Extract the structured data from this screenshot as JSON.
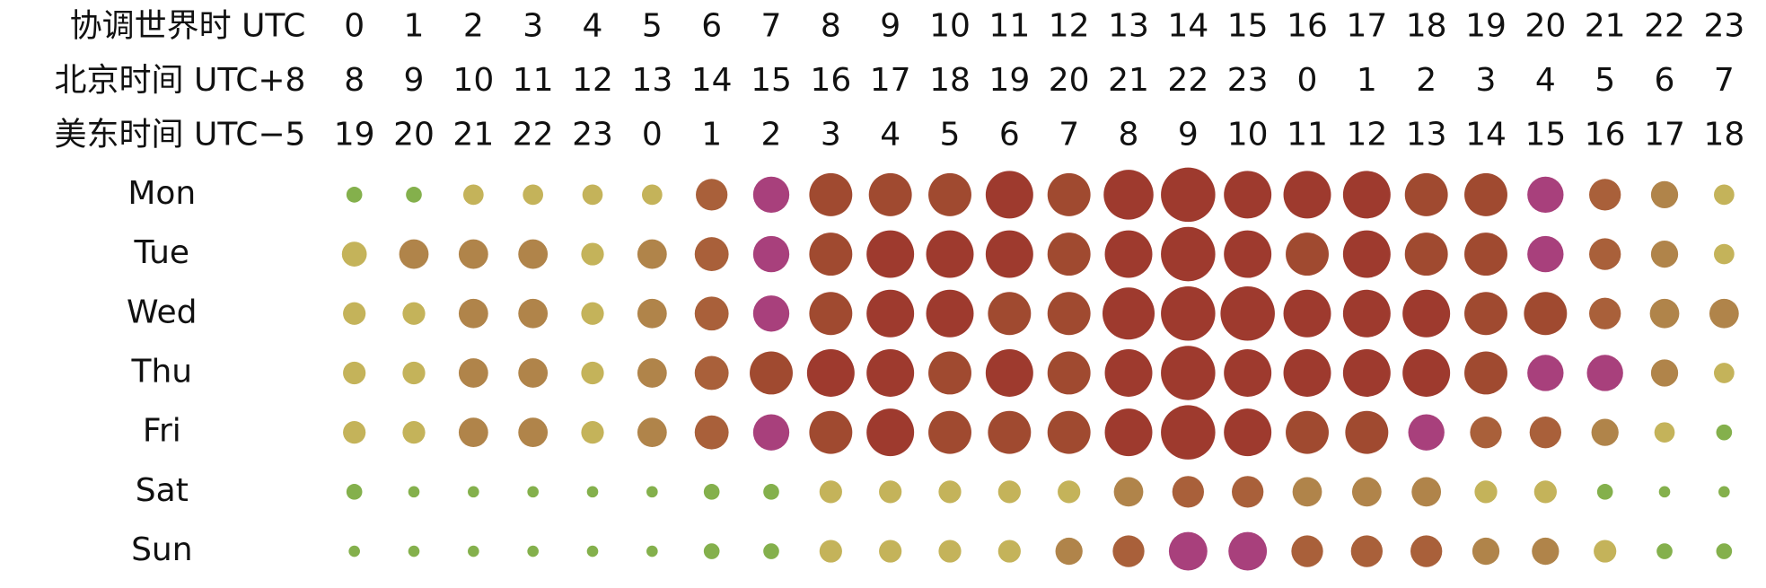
{
  "chart_data": {
    "type": "punchcard",
    "header_rows": [
      {
        "label": "协调世界时 UTC",
        "hours": [
          0,
          1,
          2,
          3,
          4,
          5,
          6,
          7,
          8,
          9,
          10,
          11,
          12,
          13,
          14,
          15,
          16,
          17,
          18,
          19,
          20,
          21,
          22,
          23
        ]
      },
      {
        "label": "北京时间 UTC+8",
        "hours": [
          8,
          9,
          10,
          11,
          12,
          13,
          14,
          15,
          16,
          17,
          18,
          19,
          20,
          21,
          22,
          23,
          0,
          1,
          2,
          3,
          4,
          5,
          6,
          7
        ]
      },
      {
        "label": "美东时间 UTC−5",
        "hours": [
          19,
          20,
          21,
          22,
          23,
          0,
          1,
          2,
          3,
          4,
          5,
          6,
          7,
          8,
          9,
          10,
          11,
          12,
          13,
          14,
          15,
          16,
          17,
          18
        ]
      }
    ],
    "series": [
      {
        "name": "Mon",
        "values": [
          14,
          14,
          18,
          18,
          18,
          18,
          28,
          32,
          38,
          38,
          38,
          42,
          38,
          44,
          48,
          42,
          42,
          42,
          38,
          38,
          32,
          28,
          24,
          18
        ],
        "colors": [
          "#84b04c",
          "#84b04c",
          "#c4b35a",
          "#c4b35a",
          "#c4b35a",
          "#c4b35a",
          "#a9603a",
          "#a8407c",
          "#a04a30",
          "#a04a30",
          "#a04a30",
          "#9e3a2e",
          "#a04a30",
          "#9e3a2e",
          "#9e3a2e",
          "#9e3a2e",
          "#9e3a2e",
          "#9e3a2e",
          "#a04a30",
          "#a04a30",
          "#a8407c",
          "#a9603a",
          "#b0844a",
          "#c4b35a"
        ]
      },
      {
        "name": "Tue",
        "values": [
          22,
          26,
          26,
          26,
          20,
          26,
          30,
          32,
          38,
          42,
          42,
          42,
          38,
          42,
          48,
          42,
          38,
          42,
          38,
          38,
          32,
          28,
          24,
          18
        ],
        "colors": [
          "#c4b35a",
          "#b0844a",
          "#b0844a",
          "#b0844a",
          "#c4b35a",
          "#b0844a",
          "#a9603a",
          "#a8407c",
          "#a04a30",
          "#9e3a2e",
          "#9e3a2e",
          "#9e3a2e",
          "#a04a30",
          "#9e3a2e",
          "#9e3a2e",
          "#9e3a2e",
          "#a04a30",
          "#9e3a2e",
          "#a04a30",
          "#a04a30",
          "#a8407c",
          "#a9603a",
          "#b0844a",
          "#c4b35a"
        ]
      },
      {
        "name": "Wed",
        "values": [
          20,
          20,
          26,
          26,
          20,
          26,
          30,
          32,
          38,
          42,
          42,
          38,
          38,
          46,
          48,
          48,
          42,
          42,
          42,
          38,
          38,
          28,
          26,
          26
        ],
        "colors": [
          "#c4b35a",
          "#c4b35a",
          "#b0844a",
          "#b0844a",
          "#c4b35a",
          "#b0844a",
          "#a9603a",
          "#a8407c",
          "#a04a30",
          "#9e3a2e",
          "#9e3a2e",
          "#a04a30",
          "#a04a30",
          "#9e3a2e",
          "#9e3a2e",
          "#9e3a2e",
          "#9e3a2e",
          "#9e3a2e",
          "#9e3a2e",
          "#a04a30",
          "#a04a30",
          "#a9603a",
          "#b0844a",
          "#b0844a"
        ]
      },
      {
        "name": "Thu",
        "values": [
          20,
          20,
          26,
          26,
          20,
          26,
          30,
          38,
          42,
          42,
          38,
          42,
          38,
          42,
          48,
          42,
          42,
          42,
          42,
          38,
          32,
          32,
          24,
          18
        ],
        "colors": [
          "#c4b35a",
          "#c4b35a",
          "#b0844a",
          "#b0844a",
          "#c4b35a",
          "#b0844a",
          "#a9603a",
          "#a04a30",
          "#9e3a2e",
          "#9e3a2e",
          "#a04a30",
          "#9e3a2e",
          "#a04a30",
          "#9e3a2e",
          "#9e3a2e",
          "#9e3a2e",
          "#9e3a2e",
          "#9e3a2e",
          "#9e3a2e",
          "#a04a30",
          "#a8407c",
          "#a8407c",
          "#b0844a",
          "#c4b35a"
        ]
      },
      {
        "name": "Fri",
        "values": [
          20,
          20,
          26,
          26,
          20,
          26,
          30,
          32,
          38,
          42,
          38,
          38,
          38,
          42,
          48,
          42,
          38,
          38,
          32,
          28,
          28,
          24,
          18,
          14
        ],
        "colors": [
          "#c4b35a",
          "#c4b35a",
          "#b0844a",
          "#b0844a",
          "#c4b35a",
          "#b0844a",
          "#a9603a",
          "#a8407c",
          "#a04a30",
          "#9e3a2e",
          "#a04a30",
          "#a04a30",
          "#a04a30",
          "#9e3a2e",
          "#9e3a2e",
          "#9e3a2e",
          "#a04a30",
          "#a04a30",
          "#a8407c",
          "#a9603a",
          "#a9603a",
          "#b0844a",
          "#c4b35a",
          "#84b04c"
        ]
      },
      {
        "name": "Sat",
        "values": [
          14,
          10,
          10,
          10,
          10,
          10,
          14,
          14,
          20,
          20,
          20,
          20,
          20,
          26,
          28,
          28,
          26,
          26,
          26,
          20,
          20,
          14,
          10,
          10
        ],
        "colors": [
          "#84b04c",
          "#84b04c",
          "#84b04c",
          "#84b04c",
          "#84b04c",
          "#84b04c",
          "#84b04c",
          "#84b04c",
          "#c4b35a",
          "#c4b35a",
          "#c4b35a",
          "#c4b35a",
          "#c4b35a",
          "#b0844a",
          "#a9603a",
          "#a9603a",
          "#b0844a",
          "#b0844a",
          "#b0844a",
          "#c4b35a",
          "#c4b35a",
          "#84b04c",
          "#84b04c",
          "#84b04c"
        ]
      },
      {
        "name": "Sun",
        "values": [
          10,
          10,
          10,
          10,
          10,
          10,
          14,
          14,
          20,
          20,
          20,
          20,
          24,
          28,
          34,
          34,
          28,
          28,
          28,
          24,
          24,
          20,
          14,
          14
        ],
        "colors": [
          "#84b04c",
          "#84b04c",
          "#84b04c",
          "#84b04c",
          "#84b04c",
          "#84b04c",
          "#84b04c",
          "#84b04c",
          "#c4b35a",
          "#c4b35a",
          "#c4b35a",
          "#c4b35a",
          "#b0844a",
          "#a9603a",
          "#a8407c",
          "#a8407c",
          "#a9603a",
          "#a9603a",
          "#a9603a",
          "#b0844a",
          "#b0844a",
          "#c4b35a",
          "#84b04c",
          "#84b04c"
        ]
      }
    ]
  }
}
